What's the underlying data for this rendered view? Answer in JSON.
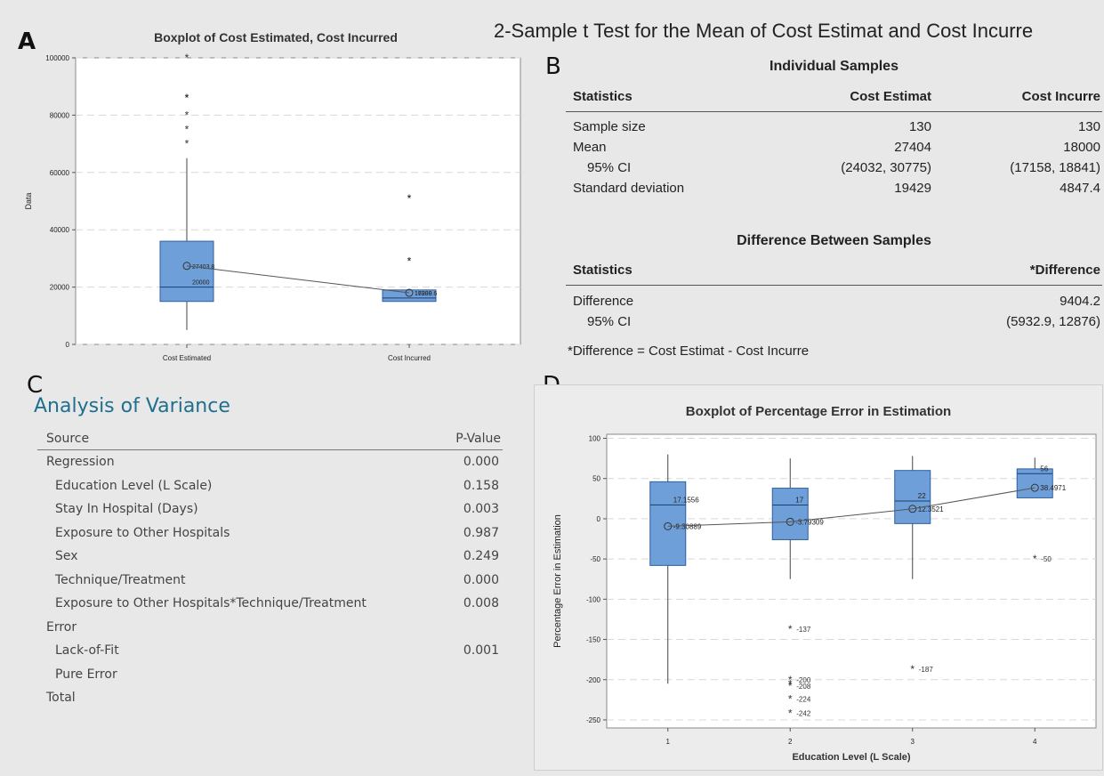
{
  "panels": {
    "a": {
      "letter": "A"
    },
    "b": {
      "letter": "B"
    },
    "c": {
      "letter": "C"
    },
    "d": {
      "letter": "D"
    }
  },
  "panel_b": {
    "title": "2-Sample t Test for the Mean of Cost Estimat and Cost Incurre",
    "individual": {
      "heading": "Individual Samples",
      "columns": [
        "Statistics",
        "Cost Estimat",
        "Cost Incurre"
      ],
      "rows": [
        {
          "label": "Sample size",
          "v1": "130",
          "v2": "130"
        },
        {
          "label": "Mean",
          "v1": "27404",
          "v2": "18000"
        },
        {
          "label": "95% CI",
          "v1": "(24032, 30775)",
          "v2": "(17158, 18841)"
        },
        {
          "label": "Standard deviation",
          "v1": "19429",
          "v2": "4847.4"
        }
      ]
    },
    "difference": {
      "heading": "Difference Between Samples",
      "columns": [
        "Statistics",
        "*Difference"
      ],
      "rows": [
        {
          "label": "Difference",
          "v": "9404.2"
        },
        {
          "label": "95% CI",
          "v": "(5932.9, 12876)"
        }
      ],
      "footnote": "*Difference = Cost Estimat - Cost Incurre"
    }
  },
  "panel_c": {
    "title": "Analysis of Variance",
    "columns": [
      "Source",
      "P-Value"
    ],
    "rows": [
      {
        "label": "Regression",
        "p": "0.000",
        "indent": 0
      },
      {
        "label": "Education Level (L Scale)",
        "p": "0.158",
        "indent": 1
      },
      {
        "label": "Stay In Hospital (Days)",
        "p": "0.003",
        "indent": 1
      },
      {
        "label": "Exposure to Other Hospitals",
        "p": "0.987",
        "indent": 1
      },
      {
        "label": "Sex",
        "p": "0.249",
        "indent": 1
      },
      {
        "label": "Technique/Treatment",
        "p": "0.000",
        "indent": 1
      },
      {
        "label": "Exposure to Other Hospitals*Technique/Treatment",
        "p": "0.008",
        "indent": 1
      },
      {
        "label": "Error",
        "p": "",
        "indent": 0
      },
      {
        "label": "Lack-of-Fit",
        "p": "0.001",
        "indent": 1
      },
      {
        "label": "Pure Error",
        "p": "",
        "indent": 1
      },
      {
        "label": "Total",
        "p": "",
        "indent": 0
      }
    ]
  },
  "colors": {
    "box_fill": "#6f9fd8",
    "box_stroke": "#2f5f9f",
    "heading_blue": "#1f6f8f"
  },
  "chart_data": [
    {
      "type": "box",
      "title": "Boxplot of Cost Estimated, Cost Incurred",
      "xlabel": "",
      "ylabel": "Data",
      "ylim": [
        0,
        100000
      ],
      "yticks": [
        "0",
        "20000",
        "40000",
        "60000",
        "80000",
        "100000"
      ],
      "grid": true,
      "categories": [
        "Cost Estimated",
        "Cost Incurred"
      ],
      "boxes": [
        {
          "q1": 15000,
          "median": 20000,
          "q3": 36000,
          "whisker_low": 5000,
          "whisker_high": 65000,
          "mean": 27403.8,
          "mean_label": "27403.8",
          "median_label": "20000",
          "outliers": [
            70000,
            75000,
            80000,
            86000,
            86000,
            86000,
            100000
          ]
        },
        {
          "q1": 15000,
          "median": 16200,
          "q3": 19000,
          "whisker_low": 15000,
          "whisker_high": 19000,
          "mean": 17999.6,
          "mean_label": "17999.6",
          "median_label": "16200",
          "outliers": [
            29000,
            29000,
            51000,
            51000
          ]
        }
      ]
    },
    {
      "type": "box",
      "title": "Boxplot of Percentage Error in Estimation",
      "xlabel": "Education Level (L Scale)",
      "ylabel": "Percentage Error in Estimation",
      "ylim": [
        -260,
        105
      ],
      "yticks": [
        "-250",
        "-200",
        "-150",
        "-100",
        "-50",
        "0",
        "50",
        "100"
      ],
      "grid": true,
      "categories": [
        "1",
        "2",
        "3",
        "4"
      ],
      "boxes": [
        {
          "q1": -58,
          "median": 17.1556,
          "q3": 46,
          "whisker_low": -205,
          "whisker_high": 80,
          "mean": -9.30889,
          "mean_label": "-9.30889",
          "median_label": "17.1556",
          "outliers": []
        },
        {
          "q1": -26,
          "median": 17,
          "q3": 38,
          "whisker_low": -75,
          "whisker_high": 75,
          "mean": -3.79309,
          "mean_label": "-3.79309",
          "median_label": "17",
          "outliers": [
            -137,
            -200,
            -205,
            -208,
            -224,
            -242
          ],
          "outlier_labels": [
            "-137",
            "-200",
            "-208",
            "-224",
            "-242"
          ]
        },
        {
          "q1": -6,
          "median": 22,
          "q3": 60,
          "whisker_low": -75,
          "whisker_high": 78,
          "mean": 12.3521,
          "mean_label": "12.3521",
          "median_label": "22",
          "outliers": [
            -187
          ],
          "outlier_labels": [
            "-187"
          ]
        },
        {
          "q1": 26,
          "median": 56,
          "q3": 62,
          "whisker_low": 26,
          "whisker_high": 76,
          "mean": 38.4971,
          "mean_label": "38.4971",
          "median_label": "56",
          "outliers": [
            -50
          ],
          "outlier_labels": [
            "-50"
          ]
        }
      ]
    }
  ]
}
